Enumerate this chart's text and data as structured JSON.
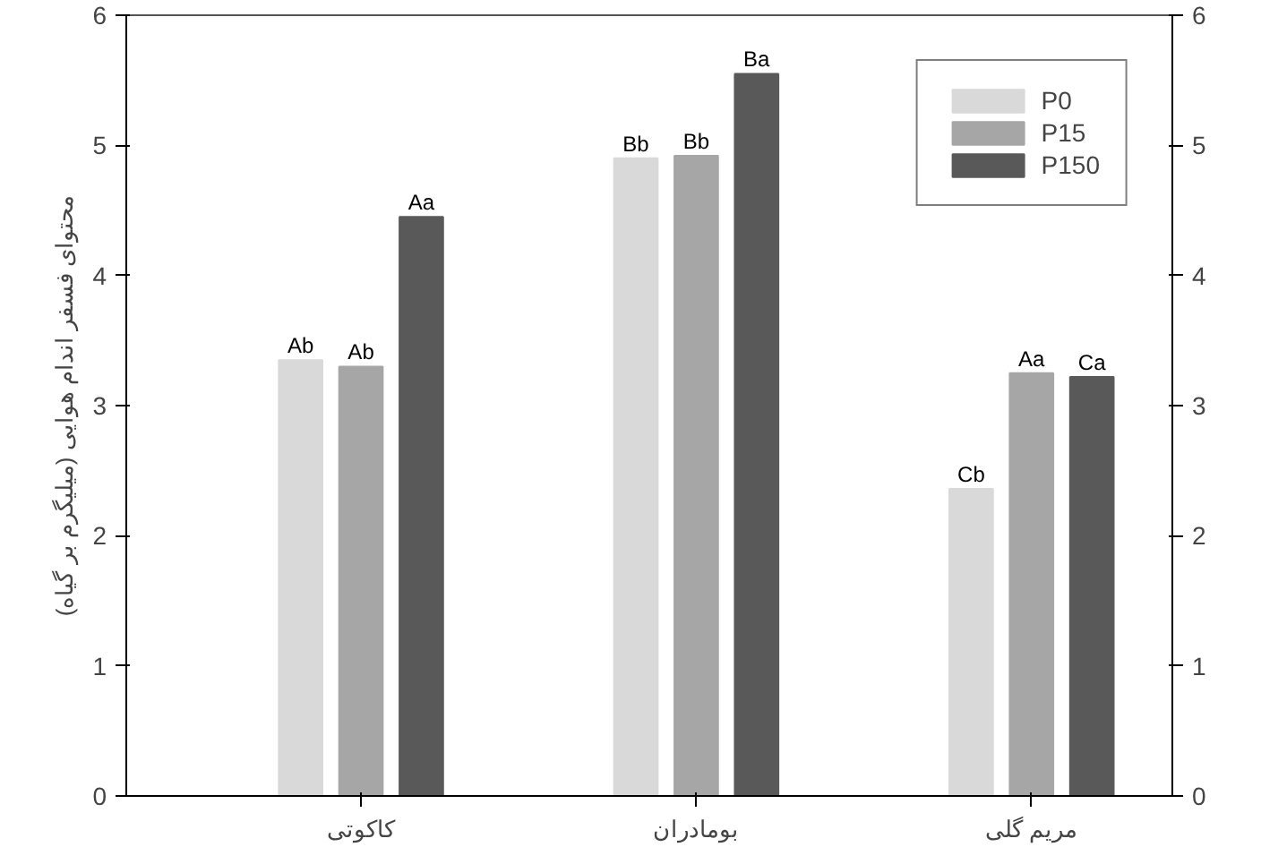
{
  "chart_data": {
    "type": "bar",
    "ylabel": "محتوای فسفر اندام هوایی (میلیگرم بر گیاه)",
    "categories": [
      "کاکوتی",
      "بومادران",
      "مریم گلی"
    ],
    "series": [
      {
        "name": "P0",
        "color": "#d9d9d9",
        "values": [
          3.35,
          4.9,
          2.36
        ],
        "value_labels": [
          "Ab",
          "Bb",
          "Cb"
        ]
      },
      {
        "name": "P15",
        "color": "#a6a6a6",
        "values": [
          3.3,
          4.92,
          3.25
        ],
        "value_labels": [
          "Ab",
          "Bb",
          "Aa"
        ]
      },
      {
        "name": "P150",
        "color": "#595959",
        "values": [
          4.45,
          5.55,
          3.22
        ],
        "value_labels": [
          "Aa",
          "Ba",
          "Ca"
        ]
      }
    ],
    "ylim": [
      0,
      6
    ],
    "yticks": [
      0,
      1,
      2,
      3,
      4,
      5,
      6
    ],
    "y2lim": [
      0,
      6
    ],
    "y2ticks": [
      0,
      1,
      2,
      3,
      4,
      5,
      6
    ],
    "grid": false,
    "legend": "top right"
  }
}
